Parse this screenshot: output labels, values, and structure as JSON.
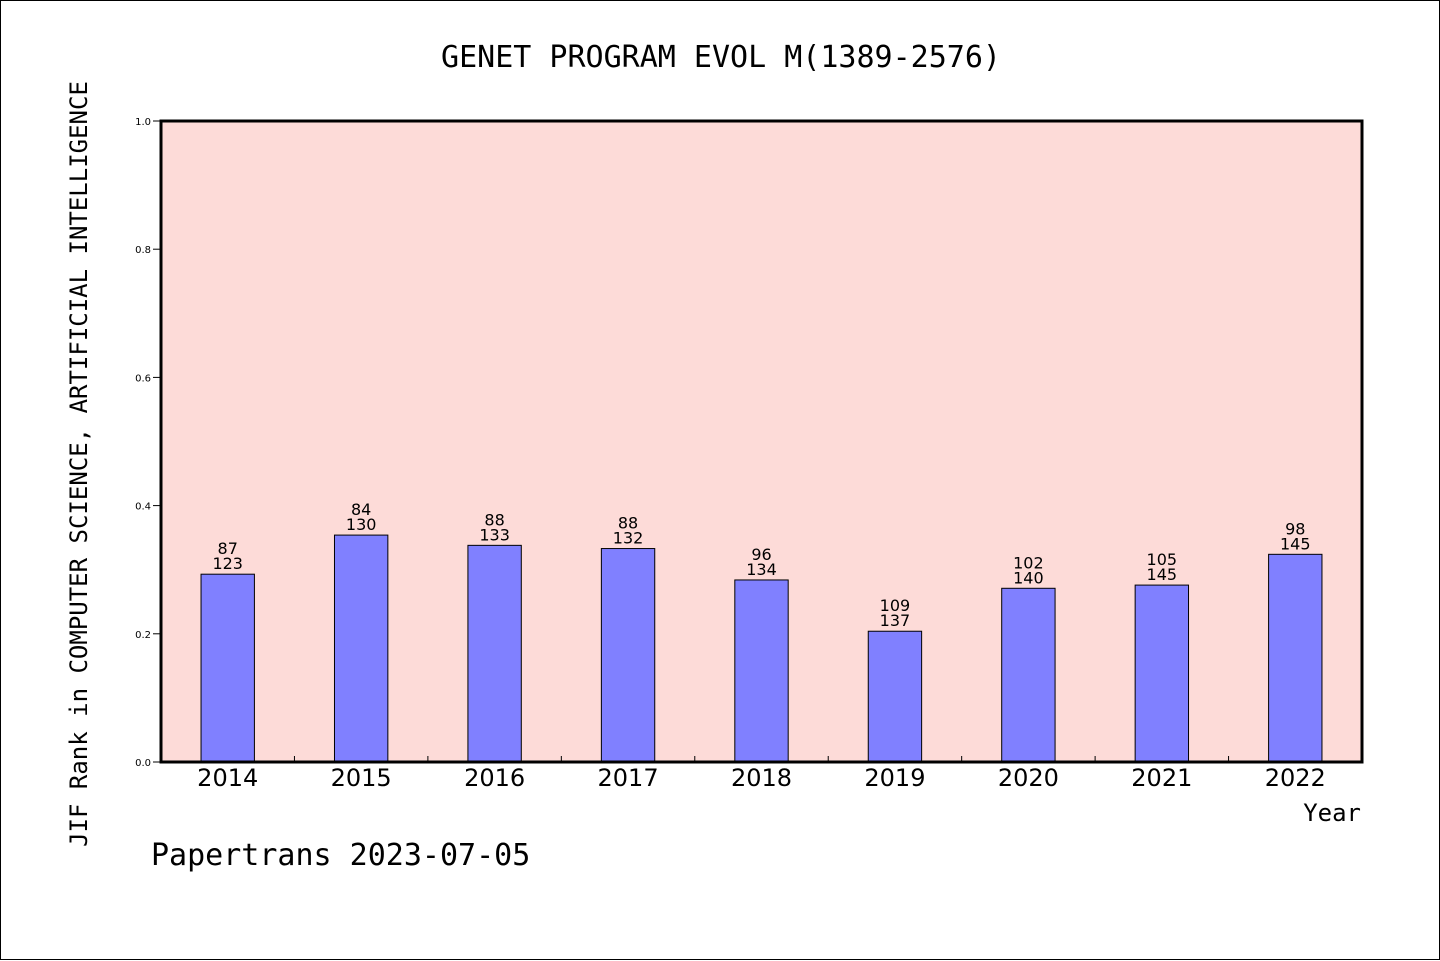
{
  "chart_data": {
    "type": "bar",
    "title": "GENET PROGRAM EVOL M(1389-2576)",
    "xlabel": "Year",
    "ylabel": "JIF Rank in COMPUTER SCIENCE, ARTIFICIAL INTELLIGENCE",
    "ylim": [
      0,
      1.0
    ],
    "yticks": [
      "0.0",
      "0.2",
      "0.4",
      "0.6",
      "0.8",
      "1.0"
    ],
    "categories": [
      "2014",
      "2015",
      "2016",
      "2017",
      "2018",
      "2019",
      "2020",
      "2021",
      "2022"
    ],
    "values": [
      0.293,
      0.354,
      0.338,
      0.333,
      0.284,
      0.204,
      0.271,
      0.276,
      0.324
    ],
    "rank": [
      87,
      84,
      88,
      88,
      96,
      109,
      102,
      105,
      98
    ],
    "total": [
      123,
      130,
      133,
      132,
      134,
      137,
      140,
      145,
      145
    ],
    "grid": false,
    "legend": "none",
    "colors": {
      "plot_bg": "#fddbd8",
      "bar": "#8080ff",
      "bar_edge": "#000000"
    }
  },
  "footer": "Papertrans 2023-07-05"
}
